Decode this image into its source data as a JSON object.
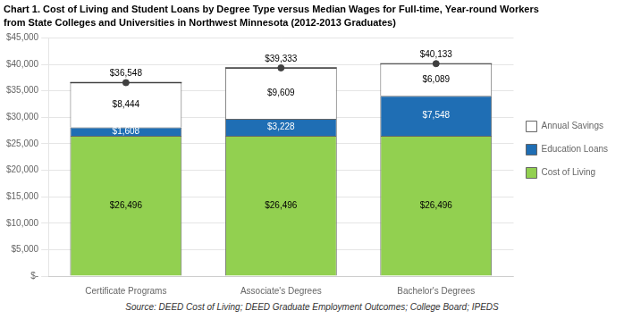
{
  "chart_data": {
    "type": "bar",
    "title": "Chart 1. Cost of Living and Student Loans by Degree Type versus Median Wages for Full-time, Year-round Workers",
    "subtitle": "from State Colleges and Universities in Northwest Minnesota (2012-2013 Graduates)",
    "source": "Source: DEED Cost of Living; DEED Graduate Employment Outcomes; College Board; IPEDS",
    "categories": [
      "Certificate Programs",
      "Associate's Degrees",
      "Bachelor's Degrees"
    ],
    "stacked": true,
    "data_labels": true,
    "grid": true,
    "legend": "right",
    "ylim": [
      0,
      45000
    ],
    "yticks": [
      {
        "value": 0,
        "label": "$-"
      },
      {
        "value": 5000,
        "label": "$5,000"
      },
      {
        "value": 10000,
        "label": "$10,000"
      },
      {
        "value": 15000,
        "label": "$15,000"
      },
      {
        "value": 20000,
        "label": "$20,000"
      },
      {
        "value": 25000,
        "label": "$25,000"
      },
      {
        "value": 30000,
        "label": "$30,000"
      },
      {
        "value": 35000,
        "label": "$35,000"
      },
      {
        "value": 40000,
        "label": "$40,000"
      },
      {
        "value": 45000,
        "label": "$45,000"
      }
    ],
    "series": [
      {
        "name": "Cost of Living",
        "color": "#92D050",
        "values": [
          26496,
          26496,
          26496
        ],
        "value_labels": [
          "$26,496",
          "$26,496",
          "$26,496"
        ]
      },
      {
        "name": "Education Loans",
        "color": "#1F6EB4",
        "values": [
          1608,
          3228,
          7548
        ],
        "value_labels": [
          "$1,608",
          "$3,228",
          "$7,548"
        ]
      },
      {
        "name": "Annual Savings",
        "color": "#FFFFFF",
        "values": [
          8444,
          9609,
          6089
        ],
        "value_labels": [
          "$8,444",
          "$9,609",
          "$6,089"
        ]
      },
      {
        "type": "scatter",
        "color": "#404040",
        "marker": "circle",
        "values": [
          36548,
          39333,
          40133
        ],
        "value_labels": [
          "$36,548",
          "$39,333",
          "$40,133"
        ]
      }
    ]
  }
}
